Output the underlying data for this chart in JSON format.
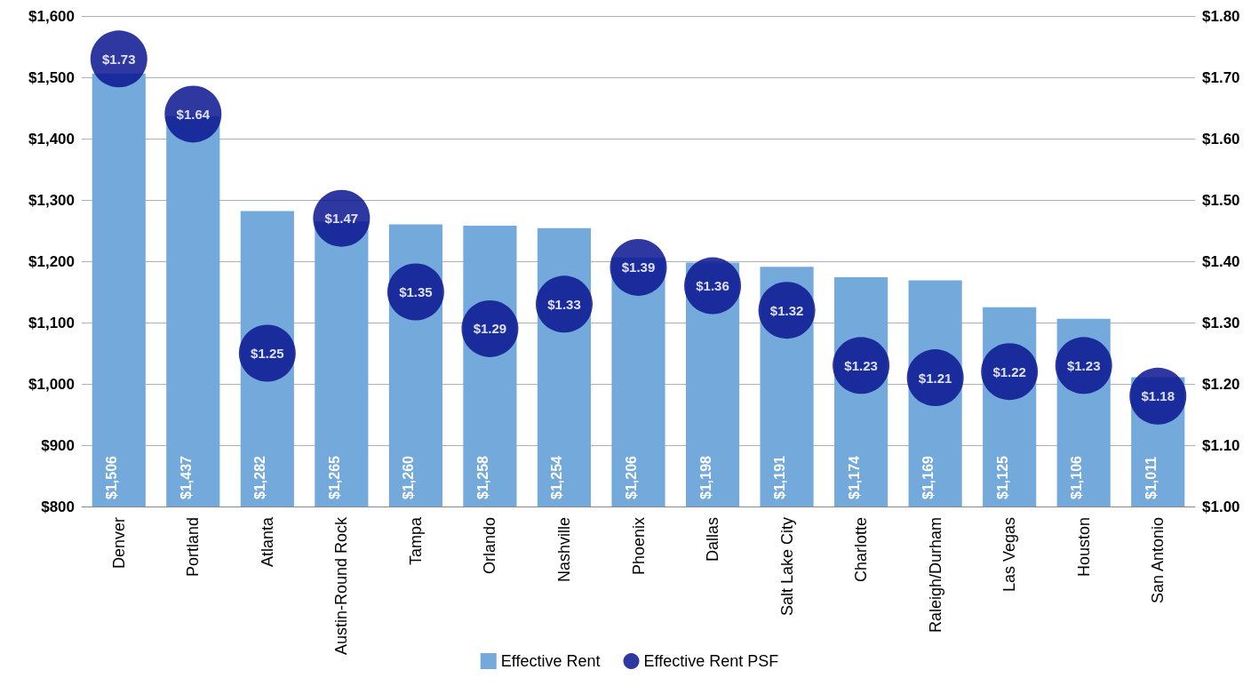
{
  "chart_data": {
    "type": "bar",
    "categories": [
      "Denver",
      "Portland",
      "Atlanta",
      "Austin-Round Rock",
      "Tampa",
      "Orlando",
      "Nashville",
      "Phoenix",
      "Dallas",
      "Salt Lake City",
      "Charlotte",
      "Raleigh/Durham",
      "Las Vegas",
      "Houston",
      "San Antonio"
    ],
    "series": [
      {
        "name": "Effective Rent",
        "type": "bar",
        "color": "#74a9dc",
        "values": [
          1506,
          1437,
          1282,
          1265,
          1260,
          1258,
          1254,
          1206,
          1198,
          1191,
          1174,
          1169,
          1125,
          1106,
          1011
        ],
        "value_labels": [
          "$1,506",
          "$1,437",
          "$1,282",
          "$1,265",
          "$1,260",
          "$1,258",
          "$1,254",
          "$1,206",
          "$1,198",
          "$1,191",
          "$1,174",
          "$1,169",
          "$1,125",
          "$1,106",
          "$1,011"
        ]
      },
      {
        "name": "Effective Rent PSF",
        "type": "scatter",
        "axis": "y2",
        "marker": "circle",
        "color": "#0a1590",
        "values": [
          1.73,
          1.64,
          1.25,
          1.47,
          1.35,
          1.29,
          1.33,
          1.39,
          1.36,
          1.32,
          1.23,
          1.21,
          1.22,
          1.23,
          1.18
        ],
        "value_labels": [
          "$1.73",
          "$1.64",
          "$1.25",
          "$1.47",
          "$1.35",
          "$1.29",
          "$1.33",
          "$1.39",
          "$1.36",
          "$1.32",
          "$1.23",
          "$1.21",
          "$1.22",
          "$1.23",
          "$1.18"
        ]
      }
    ],
    "ylim": [
      800,
      1600
    ],
    "yticks": [
      {
        "value": 800,
        "label": "$800"
      },
      {
        "value": 900,
        "label": "$900"
      },
      {
        "value": 1000,
        "label": "$1,000"
      },
      {
        "value": 1100,
        "label": "$1,100"
      },
      {
        "value": 1200,
        "label": "$1,200"
      },
      {
        "value": 1300,
        "label": "$1,300"
      },
      {
        "value": 1400,
        "label": "$1,400"
      },
      {
        "value": 1500,
        "label": "$1,500"
      },
      {
        "value": 1600,
        "label": "$1,600"
      }
    ],
    "y2lim": [
      1.0,
      1.8
    ],
    "y2ticks": [
      {
        "value": 1.0,
        "label": "$1.00"
      },
      {
        "value": 1.1,
        "label": "$1.10"
      },
      {
        "value": 1.2,
        "label": "$1.20"
      },
      {
        "value": 1.3,
        "label": "$1.30"
      },
      {
        "value": 1.4,
        "label": "$1.40"
      },
      {
        "value": 1.5,
        "label": "$1.50"
      },
      {
        "value": 1.6,
        "label": "$1.60"
      },
      {
        "value": 1.7,
        "label": "$1.70"
      },
      {
        "value": 1.8,
        "label": "$1.80"
      }
    ],
    "grid": "y",
    "legend": "bottom"
  }
}
